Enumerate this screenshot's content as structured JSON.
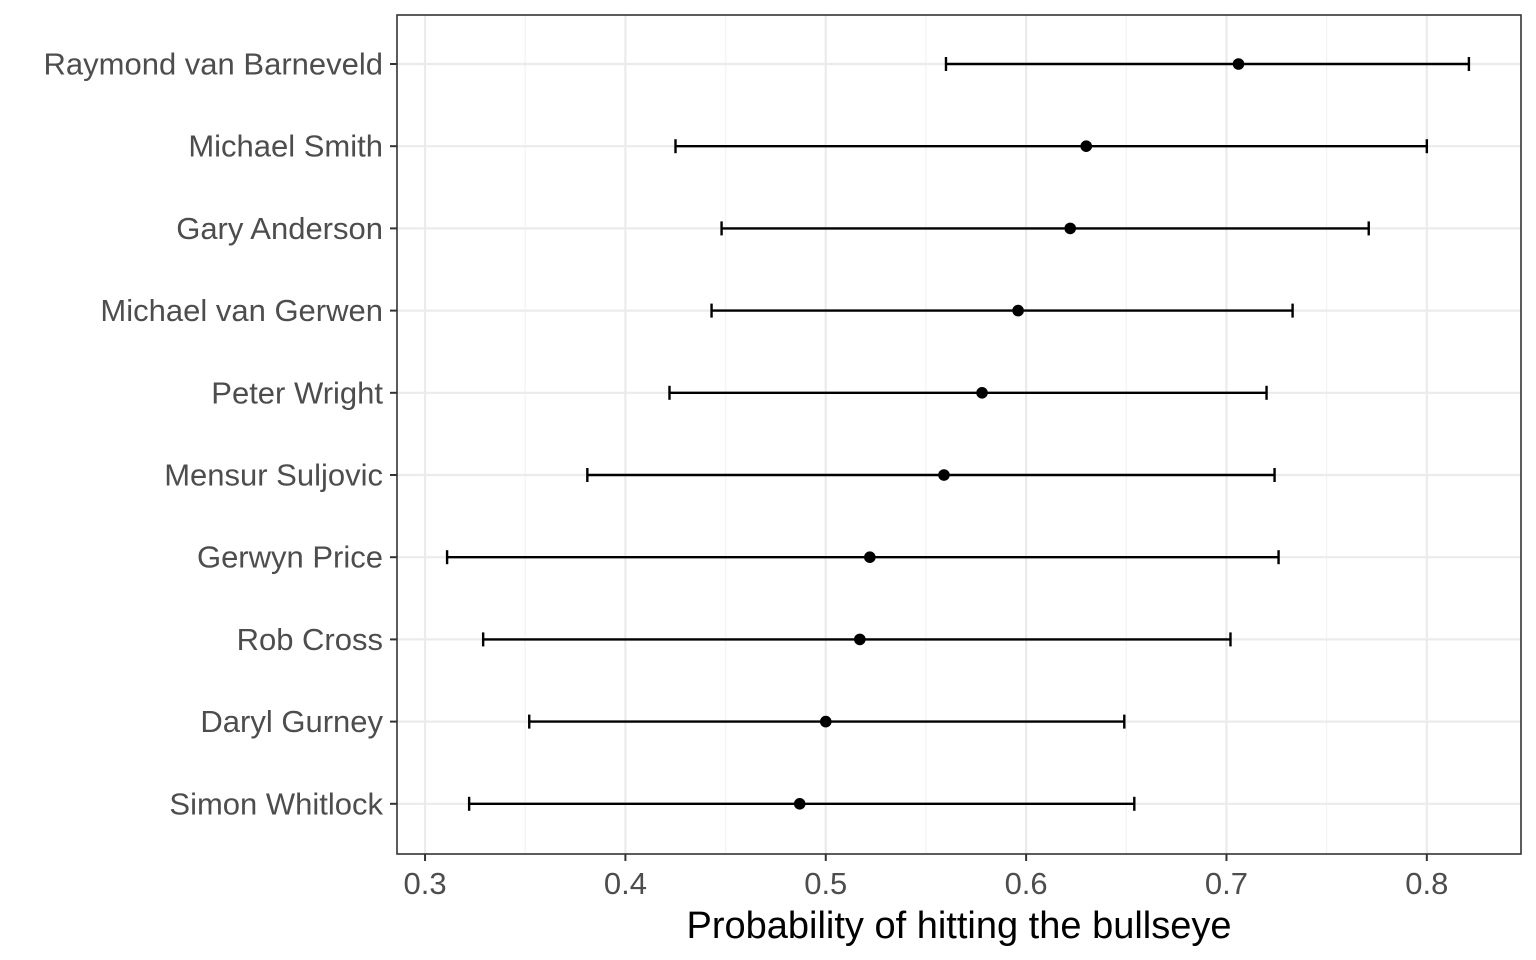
{
  "chart_data": {
    "type": "scatter",
    "subtype": "point-range",
    "title": "",
    "xlabel": "Probability of hitting the bullseye",
    "ylabel": "",
    "xlim": [
      0.286,
      0.847
    ],
    "x_ticks": [
      0.3,
      0.4,
      0.5,
      0.6,
      0.7,
      0.8
    ],
    "x_tick_labels": [
      "0.3",
      "0.4",
      "0.5",
      "0.6",
      "0.7",
      "0.8"
    ],
    "x_minor_ticks": [
      0.35,
      0.45,
      0.55,
      0.65,
      0.75
    ],
    "grid": true,
    "legend": "none",
    "categories": [
      "Raymond van Barneveld",
      "Michael Smith",
      "Gary Anderson",
      "Michael van Gerwen",
      "Peter Wright",
      "Mensur Suljovic",
      "Gerwyn Price",
      "Rob Cross",
      "Daryl Gurney",
      "Simon Whitlock"
    ],
    "estimate": [
      0.706,
      0.63,
      0.622,
      0.596,
      0.578,
      0.559,
      0.522,
      0.517,
      0.5,
      0.487
    ],
    "lower": [
      0.56,
      0.425,
      0.448,
      0.443,
      0.422,
      0.381,
      0.311,
      0.329,
      0.352,
      0.322
    ],
    "upper": [
      0.821,
      0.8,
      0.771,
      0.733,
      0.72,
      0.724,
      0.726,
      0.702,
      0.649,
      0.654
    ],
    "colors": {
      "point": "#000000",
      "errorbar": "#000000",
      "grid_major": "#ebebeb",
      "grid_minor": "#f4f4f4",
      "panel_border": "#333333",
      "tick_label": "#4d4d4d"
    }
  }
}
